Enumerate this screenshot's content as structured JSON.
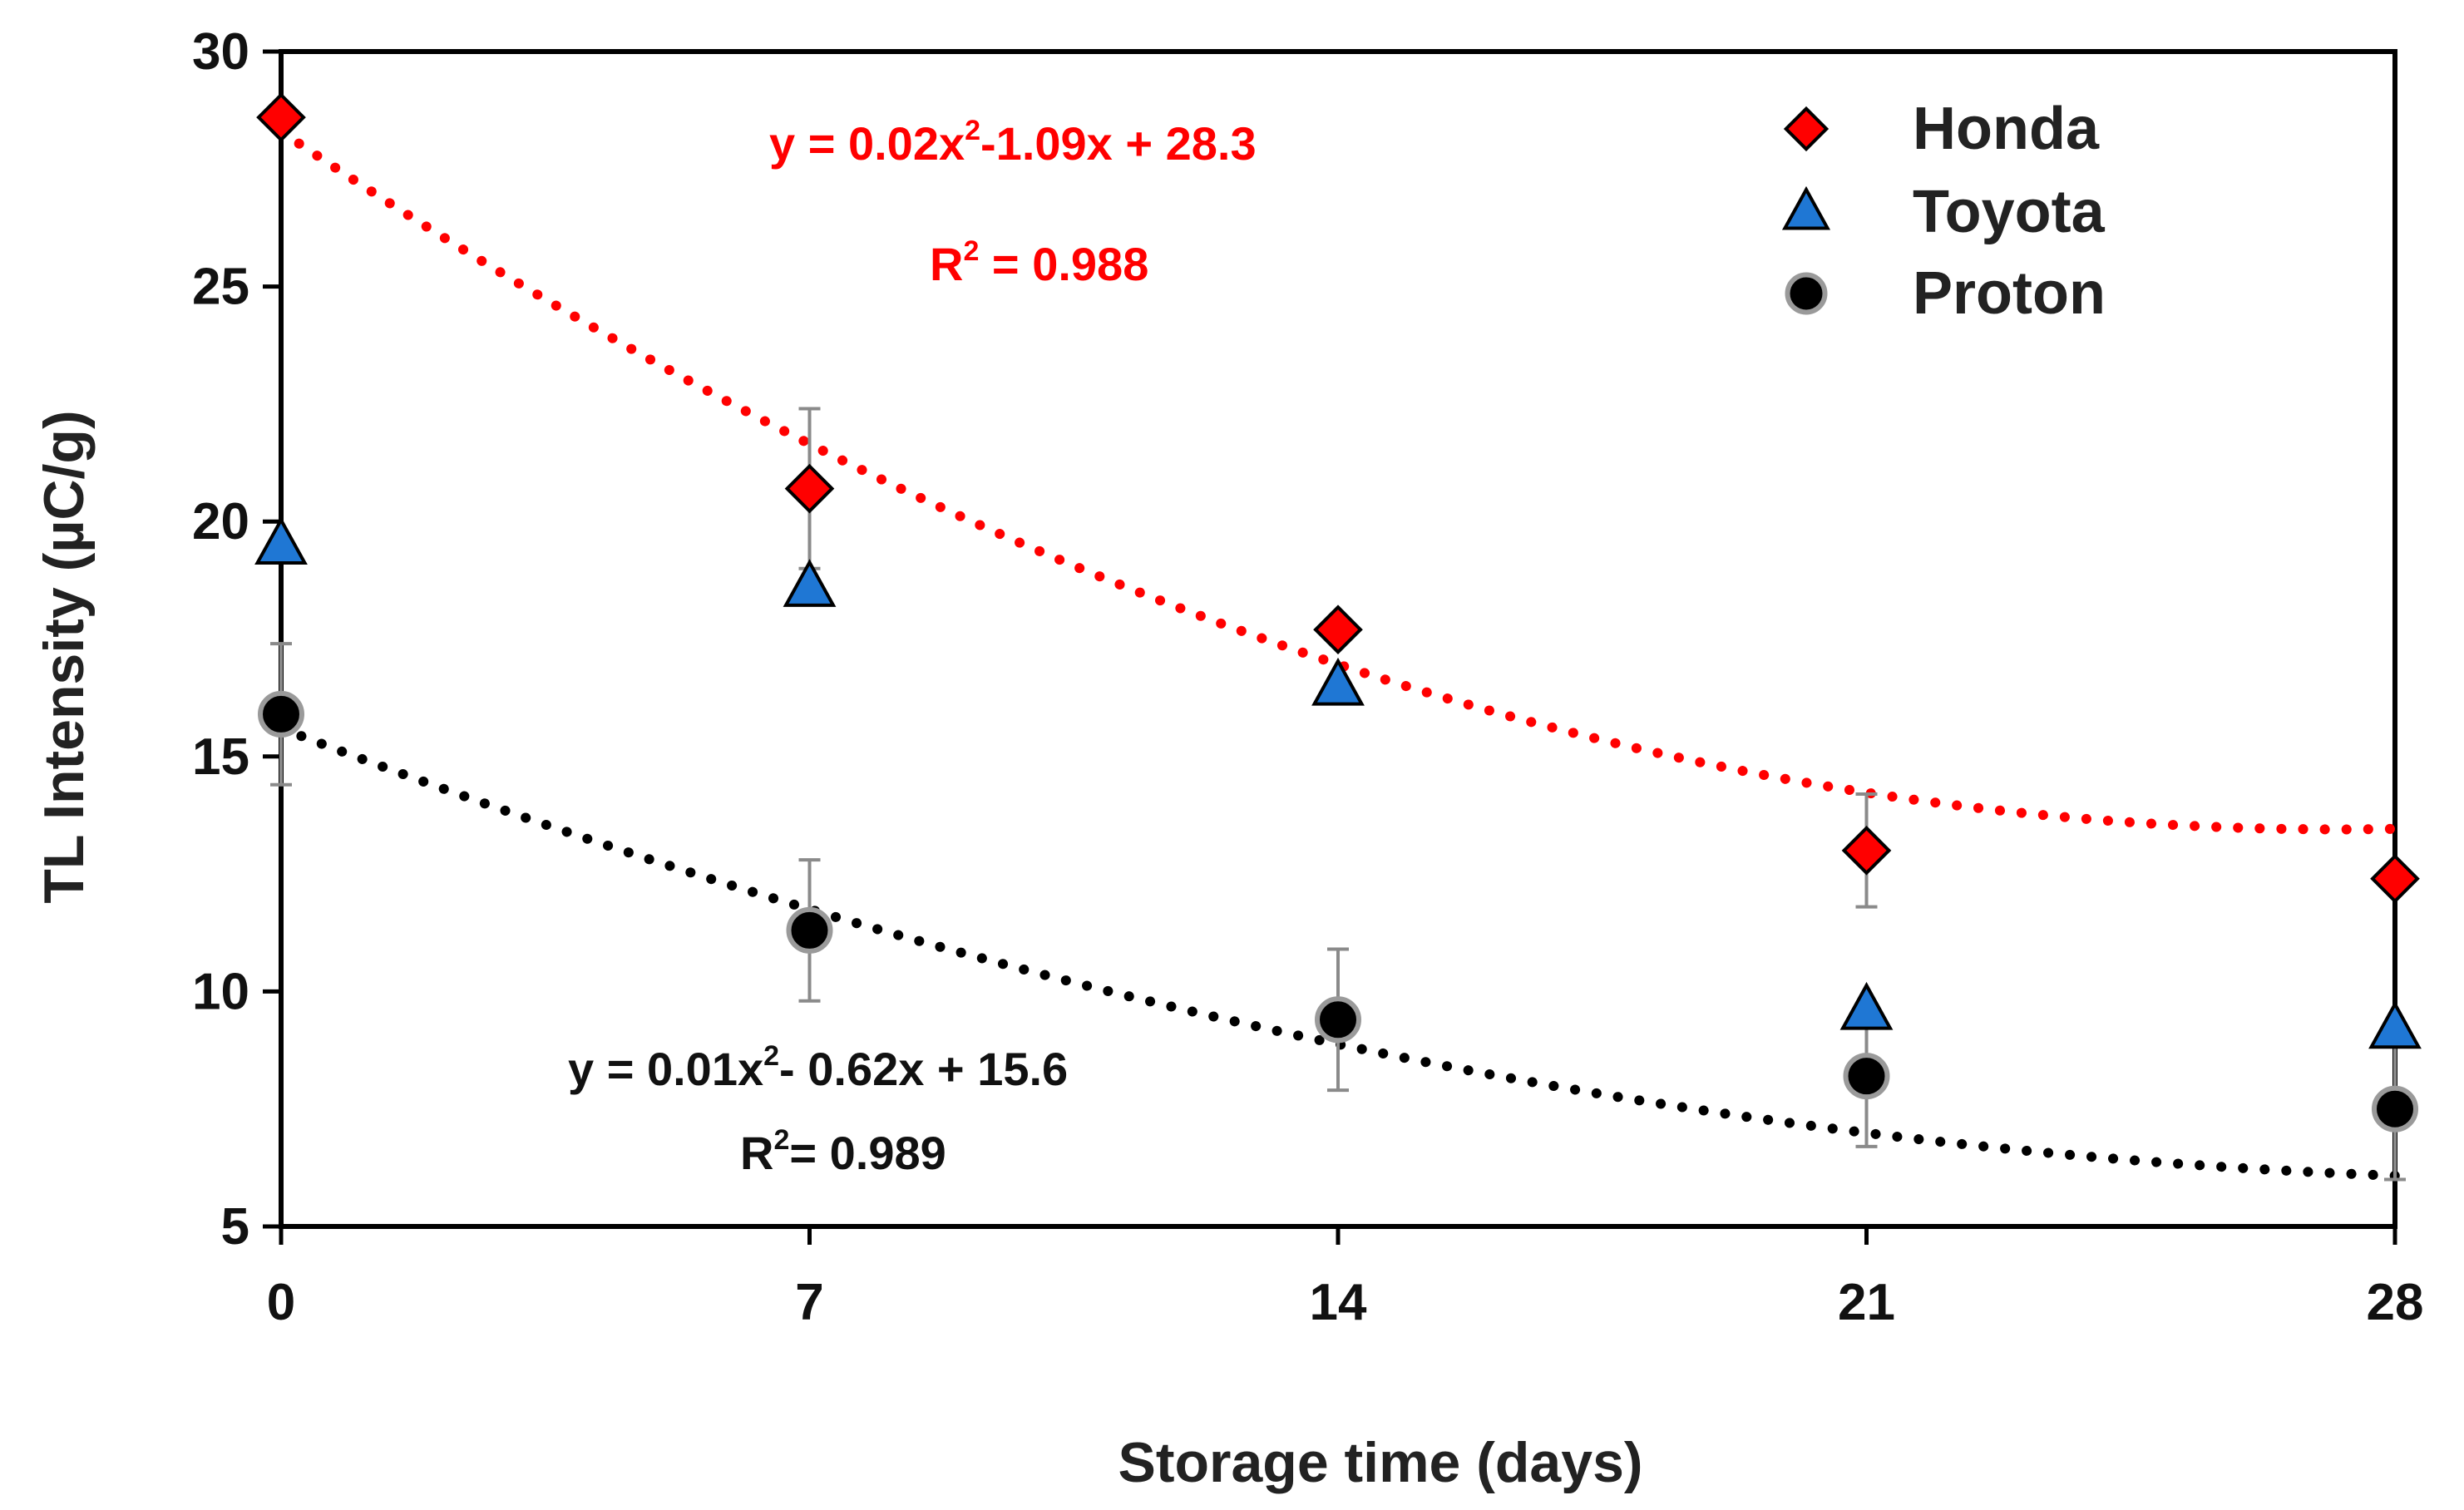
{
  "chart_data": {
    "type": "scatter",
    "xlabel": "Storage time (days)",
    "ylabel": "TL Intensity (µC/g)",
    "x": [
      0,
      7,
      14,
      21,
      28
    ],
    "xticks": [
      "0",
      "7",
      "14",
      "21",
      "28"
    ],
    "yticks": [
      "5",
      "10",
      "15",
      "20",
      "25",
      "30"
    ],
    "xlim": [
      0,
      28
    ],
    "ylim": [
      5,
      30
    ],
    "series": [
      {
        "name": "Honda",
        "marker": "diamond",
        "color": "#ff0000",
        "values": [
          28.6,
          20.7,
          17.7,
          13.0,
          12.4
        ],
        "errors": [
          0,
          1.7,
          0,
          1.2,
          0
        ],
        "trend": {
          "a": 0.02,
          "b": -1.09,
          "c": 28.3,
          "color": "#ff0000"
        }
      },
      {
        "name": "Toyota",
        "marker": "triangle",
        "color": "#1f77d4",
        "values": [
          19.5,
          18.6,
          16.5,
          9.6,
          9.2
        ],
        "errors": [
          0,
          0,
          0,
          0,
          0
        ]
      },
      {
        "name": "Proton",
        "marker": "circle",
        "color": "#000000",
        "values": [
          15.9,
          11.3,
          9.4,
          8.2,
          7.5
        ],
        "errors": [
          1.5,
          1.5,
          1.5,
          1.5,
          1.5
        ],
        "trend": {
          "a": 0.01,
          "b": -0.62,
          "c": 15.6,
          "color": "#000000"
        }
      }
    ],
    "legend": [
      "Honda",
      "Toyota",
      "Proton"
    ],
    "legend_position": "top-right",
    "annotations": {
      "honda_eq_main": "y = 0.02x",
      "honda_eq_sup": "2",
      "honda_eq_rest": "-1.09x + 28.3",
      "honda_r2_main": "R",
      "honda_r2_sup": "2",
      "honda_r2_rest": " = 0.988",
      "proton_eq_main": "y = 0.01x",
      "proton_eq_sup": "2",
      "proton_eq_rest": "- 0.62x + 15.6",
      "proton_r2_main": "R",
      "proton_r2_sup": "2",
      "proton_r2_rest": "= 0.989"
    }
  }
}
